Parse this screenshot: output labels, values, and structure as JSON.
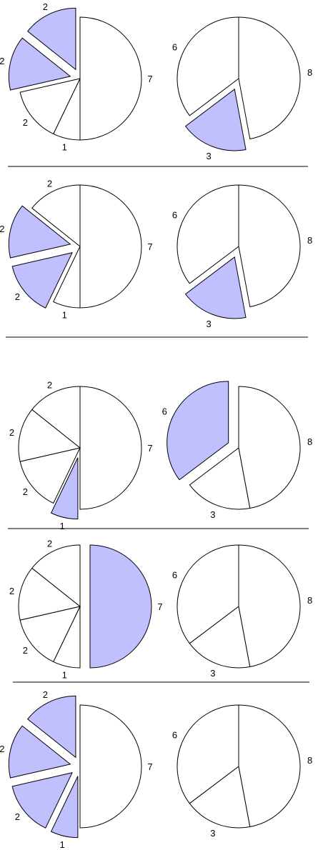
{
  "colors": {
    "highlight": "#c0c0ff",
    "normal": "#ffffff",
    "stroke": "#000000"
  },
  "chart_data": [
    {
      "type": "pie",
      "panel": 1,
      "position": "left",
      "values": [
        7,
        1,
        2,
        2,
        2
      ],
      "labels": [
        "7",
        "1",
        "2",
        "2",
        "2"
      ],
      "highlighted": [
        false,
        false,
        false,
        true,
        true
      ]
    },
    {
      "type": "pie",
      "panel": 1,
      "position": "right",
      "values": [
        6,
        3,
        8
      ],
      "labels": [
        "6",
        "3",
        "8"
      ],
      "highlighted": [
        false,
        true,
        false
      ]
    },
    {
      "type": "pie",
      "panel": 2,
      "position": "left",
      "values": [
        7,
        1,
        2,
        2,
        2
      ],
      "labels": [
        "7",
        "1",
        "2",
        "2",
        "2"
      ],
      "highlighted": [
        false,
        false,
        true,
        true,
        false
      ]
    },
    {
      "type": "pie",
      "panel": 2,
      "position": "right",
      "values": [
        6,
        3,
        8
      ],
      "labels": [
        "6",
        "3",
        "8"
      ],
      "highlighted": [
        false,
        true,
        false
      ]
    },
    {
      "type": "pie",
      "panel": 3,
      "position": "left",
      "values": [
        7,
        1,
        2,
        2,
        2
      ],
      "labels": [
        "7",
        "1",
        "2",
        "2",
        "2"
      ],
      "highlighted": [
        false,
        true,
        false,
        false,
        false
      ]
    },
    {
      "type": "pie",
      "panel": 3,
      "position": "right",
      "values": [
        6,
        3,
        8
      ],
      "labels": [
        "6",
        "3",
        "8"
      ],
      "highlighted": [
        true,
        false,
        false
      ]
    },
    {
      "type": "pie",
      "panel": 4,
      "position": "left",
      "values": [
        7,
        1,
        2,
        2,
        2
      ],
      "labels": [
        "7",
        "1",
        "2",
        "2",
        "2"
      ],
      "highlighted": [
        true,
        false,
        false,
        false,
        false
      ]
    },
    {
      "type": "pie",
      "panel": 4,
      "position": "right",
      "values": [
        6,
        3,
        8
      ],
      "labels": [
        "6",
        "3",
        "8"
      ],
      "highlighted": [
        false,
        false,
        false
      ]
    },
    {
      "type": "pie",
      "panel": 5,
      "position": "left",
      "values": [
        7,
        1,
        2,
        2,
        2
      ],
      "labels": [
        "7",
        "1",
        "2",
        "2",
        "2"
      ],
      "highlighted": [
        false,
        true,
        true,
        true,
        true
      ]
    },
    {
      "type": "pie",
      "panel": 5,
      "position": "right",
      "values": [
        6,
        3,
        8
      ],
      "labels": [
        "6",
        "3",
        "8"
      ],
      "highlighted": [
        false,
        false,
        false
      ]
    }
  ]
}
